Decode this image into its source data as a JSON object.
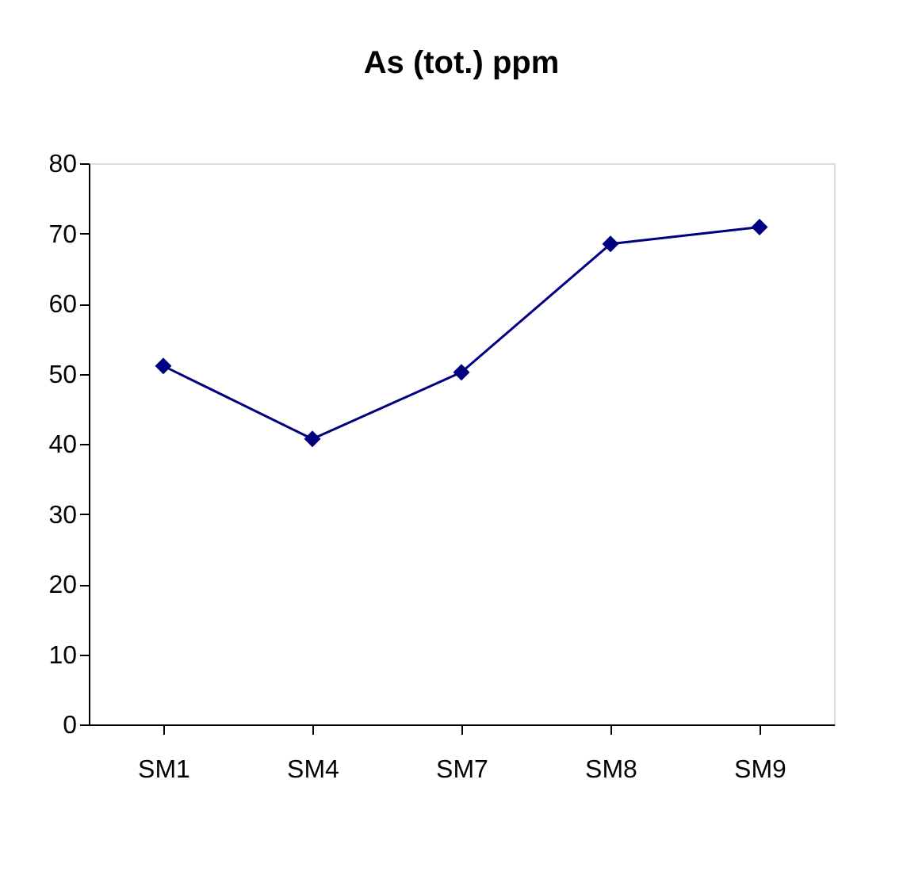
{
  "chart_data": {
    "type": "line",
    "title": "As (tot.) ppm",
    "categories": [
      "SM1",
      "SM4",
      "SM7",
      "SM8",
      "SM9"
    ],
    "series": [
      {
        "color": "#000080",
        "values": [
          51.1,
          40.7,
          50.2,
          68.5,
          70.9
        ]
      }
    ],
    "ylim": [
      0,
      80
    ],
    "yticks": [
      0,
      10,
      20,
      30,
      40,
      50,
      60,
      70,
      80
    ],
    "grid": false,
    "marker": "diamond",
    "line_style": "solid"
  }
}
